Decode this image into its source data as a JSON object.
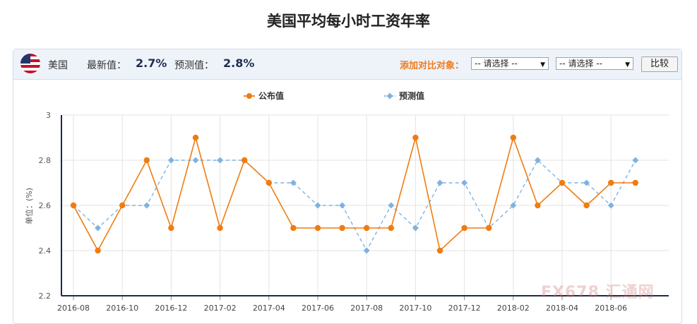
{
  "page": {
    "title": "美国平均每小时工资年率"
  },
  "toolbar": {
    "country": "美国",
    "latest_label": "最新值：",
    "latest_value": "2.7%",
    "forecast_label": "预测值：",
    "forecast_value": "2.8%",
    "compare_label": "添加对比对象：",
    "select1": "-- 请选择 --",
    "select2": "-- 请选择 --",
    "compare_button": "比较"
  },
  "watermark": "FX678 汇通网",
  "colors": {
    "actual": "#f07c10",
    "forecast": "#7fb2e0",
    "axis": "#1a2a4a",
    "grid": "#e3e3e3"
  },
  "chart_data": {
    "type": "line",
    "x": [
      "2016-08",
      "2016-09",
      "2016-10",
      "2016-11",
      "2016-12",
      "2017-01",
      "2017-02",
      "2017-03",
      "2017-04",
      "2017-05",
      "2017-06",
      "2017-07",
      "2017-08",
      "2017-09",
      "2017-10",
      "2017-11",
      "2017-12",
      "2018-01",
      "2018-02",
      "2018-03",
      "2018-04",
      "2018-05",
      "2018-06",
      "2018-07"
    ],
    "x_tick_labels": [
      "2016-08",
      "2016-10",
      "2016-12",
      "2017-02",
      "2017-04",
      "2017-06",
      "2017-08",
      "2017-10",
      "2017-12",
      "2018-02",
      "2018-04",
      "2018-06"
    ],
    "series": [
      {
        "name": "公布值",
        "style": "solid",
        "color": "#f07c10",
        "values": [
          2.6,
          2.4,
          2.6,
          2.8,
          2.5,
          2.9,
          2.5,
          2.8,
          2.7,
          2.5,
          2.5,
          2.5,
          2.5,
          2.5,
          2.9,
          2.4,
          2.5,
          2.5,
          2.9,
          2.6,
          2.7,
          2.6,
          2.7,
          2.7
        ]
      },
      {
        "name": "预测值",
        "style": "dashed",
        "color": "#7fb2e0",
        "values": [
          2.6,
          2.5,
          2.6,
          2.6,
          2.8,
          2.8,
          2.8,
          2.8,
          2.7,
          2.7,
          2.6,
          2.6,
          2.4,
          2.6,
          2.5,
          2.7,
          2.7,
          2.5,
          2.6,
          2.8,
          2.7,
          2.7,
          2.6,
          2.8
        ]
      }
    ],
    "ylabel": "单位：(%)",
    "ylim": [
      2.2,
      3.0
    ],
    "yticks": [
      "2.2",
      "2.4",
      "2.6",
      "2.8",
      "3"
    ],
    "grid": true,
    "legend_position": "top-center"
  }
}
